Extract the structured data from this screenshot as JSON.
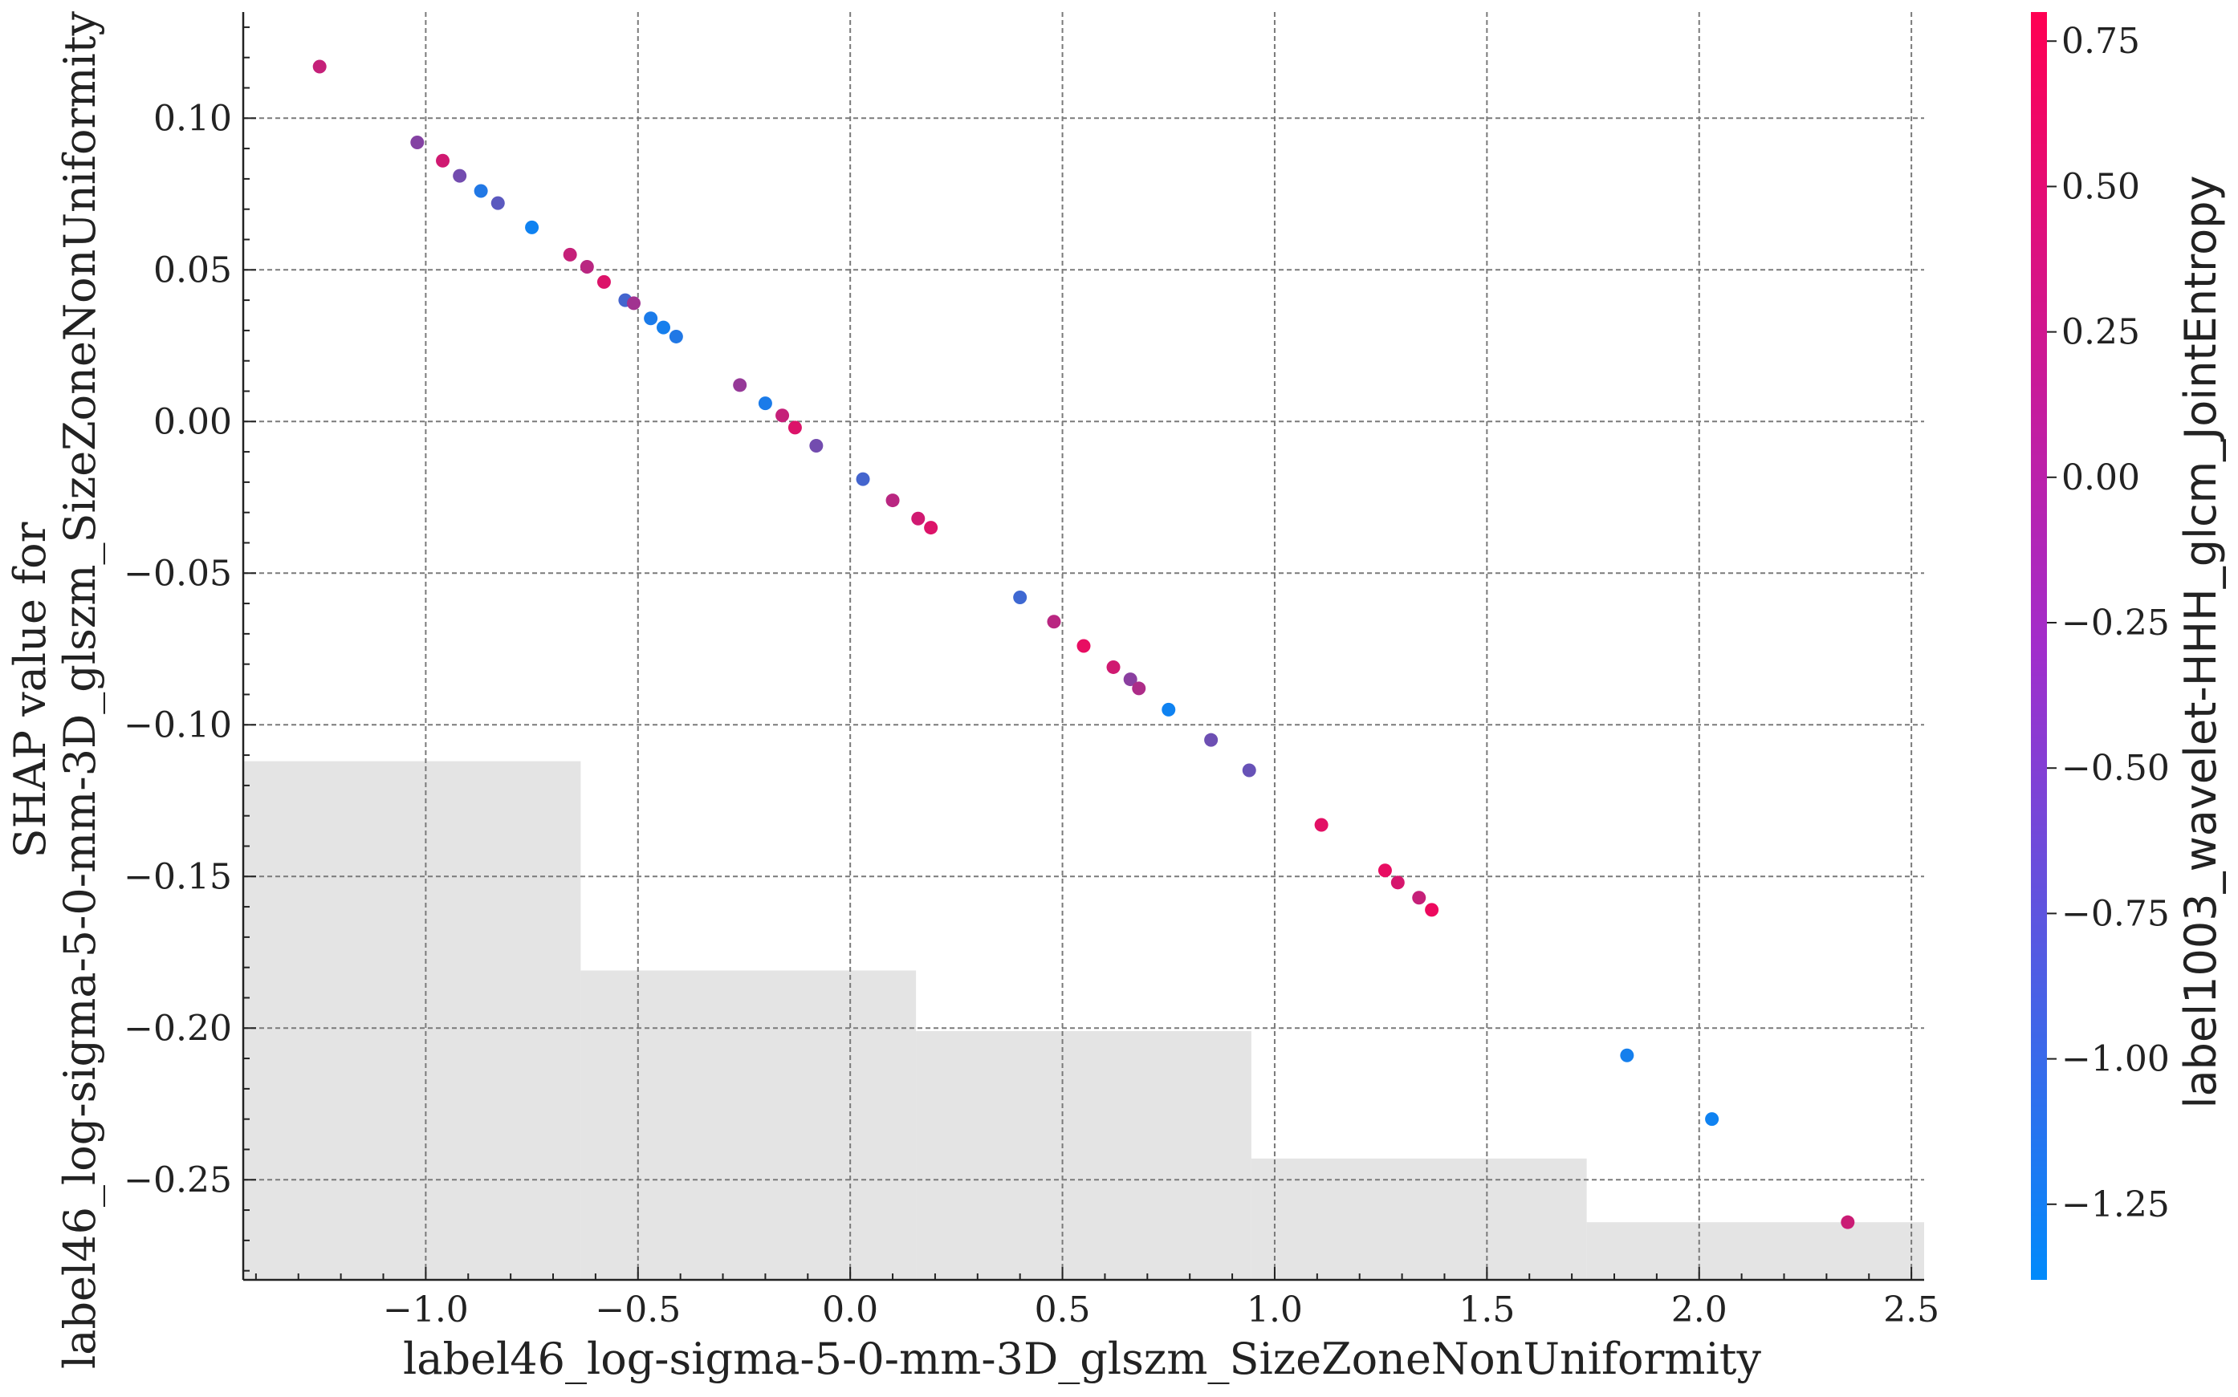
{
  "chart_data": {
    "type": "scatter",
    "xlabel": "label46_log-sigma-5-0-mm-3D_glszm_SizeZoneNonUniformity",
    "ylabel_line1": "SHAP value for",
    "ylabel_line2": "label46_log-sigma-5-0-mm-3D_glszm_SizeZoneNonUniformity",
    "colorbar_label": "label1003_wavelet-HHH_glcm_JointEntropy",
    "xlim": [
      -1.43,
      2.53
    ],
    "ylim": [
      -0.283,
      0.135
    ],
    "x_ticks": [
      -1.0,
      -0.5,
      0.0,
      0.5,
      1.0,
      1.5,
      2.0,
      2.5
    ],
    "x_tick_labels": [
      "−1.0",
      "−0.5",
      "0.0",
      "0.5",
      "1.0",
      "1.5",
      "2.0",
      "2.5"
    ],
    "y_ticks": [
      0.1,
      0.05,
      0.0,
      -0.05,
      -0.1,
      -0.15,
      -0.2,
      -0.25
    ],
    "y_tick_labels": [
      "0.10",
      "0.05",
      "0.00",
      "−0.05",
      "−0.10",
      "−0.15",
      "−0.20",
      "−0.25"
    ],
    "colorbar": {
      "range": [
        -1.38,
        0.8
      ],
      "ticks": [
        0.75,
        0.5,
        0.25,
        0.0,
        -0.25,
        -0.5,
        -0.75,
        -1.0,
        -1.25
      ],
      "tick_labels": [
        "0.75",
        "0.50",
        "0.25",
        "0.00",
        "−0.25",
        "−0.50",
        "−0.75",
        "−1.00",
        "−1.25"
      ],
      "color_low": "#008afb",
      "color_high": "#ff0052"
    },
    "histogram_background": {
      "color": "#e4e4e4",
      "bin_edges": [
        -1.43,
        -0.635,
        0.155,
        0.945,
        1.735,
        2.53
      ],
      "bar_tops": [
        -0.112,
        -0.181,
        -0.201,
        -0.243,
        -0.264
      ]
    },
    "grid": true,
    "points": [
      {
        "x": -1.25,
        "y": 0.117,
        "c": 0.3
      },
      {
        "x": -1.02,
        "y": 0.092,
        "c": -0.25
      },
      {
        "x": -0.96,
        "y": 0.086,
        "c": 0.4
      },
      {
        "x": -0.92,
        "y": 0.081,
        "c": -0.4
      },
      {
        "x": -0.87,
        "y": 0.076,
        "c": -1.1
      },
      {
        "x": -0.83,
        "y": 0.072,
        "c": -0.6
      },
      {
        "x": -0.75,
        "y": 0.064,
        "c": -1.25
      },
      {
        "x": -0.66,
        "y": 0.055,
        "c": 0.3
      },
      {
        "x": -0.62,
        "y": 0.051,
        "c": 0.2
      },
      {
        "x": -0.58,
        "y": 0.046,
        "c": 0.5
      },
      {
        "x": -0.53,
        "y": 0.04,
        "c": -0.8
      },
      {
        "x": -0.51,
        "y": 0.039,
        "c": 0.0
      },
      {
        "x": -0.47,
        "y": 0.034,
        "c": -1.15
      },
      {
        "x": -0.44,
        "y": 0.031,
        "c": -1.2
      },
      {
        "x": -0.41,
        "y": 0.028,
        "c": -1.1
      },
      {
        "x": -0.26,
        "y": 0.012,
        "c": -0.1
      },
      {
        "x": -0.2,
        "y": 0.006,
        "c": -1.15
      },
      {
        "x": -0.16,
        "y": 0.002,
        "c": 0.3
      },
      {
        "x": -0.13,
        "y": -0.002,
        "c": 0.5
      },
      {
        "x": -0.08,
        "y": -0.008,
        "c": -0.4
      },
      {
        "x": 0.03,
        "y": -0.019,
        "c": -0.8
      },
      {
        "x": 0.1,
        "y": -0.026,
        "c": 0.2
      },
      {
        "x": 0.16,
        "y": -0.032,
        "c": 0.4
      },
      {
        "x": 0.19,
        "y": -0.035,
        "c": 0.5
      },
      {
        "x": 0.4,
        "y": -0.058,
        "c": -0.85
      },
      {
        "x": 0.48,
        "y": -0.066,
        "c": 0.2
      },
      {
        "x": 0.55,
        "y": -0.074,
        "c": 0.6
      },
      {
        "x": 0.62,
        "y": -0.081,
        "c": 0.4
      },
      {
        "x": 0.66,
        "y": -0.085,
        "c": -0.2
      },
      {
        "x": 0.68,
        "y": -0.088,
        "c": 0.1
      },
      {
        "x": 0.75,
        "y": -0.095,
        "c": -1.25
      },
      {
        "x": 0.85,
        "y": -0.105,
        "c": -0.45
      },
      {
        "x": 0.94,
        "y": -0.115,
        "c": -0.5
      },
      {
        "x": 1.11,
        "y": -0.133,
        "c": 0.55
      },
      {
        "x": 1.26,
        "y": -0.148,
        "c": 0.6
      },
      {
        "x": 1.29,
        "y": -0.152,
        "c": 0.45
      },
      {
        "x": 1.34,
        "y": -0.157,
        "c": 0.3
      },
      {
        "x": 1.37,
        "y": -0.161,
        "c": 0.65
      },
      {
        "x": 1.83,
        "y": -0.209,
        "c": -1.2
      },
      {
        "x": 2.03,
        "y": -0.23,
        "c": -1.25
      },
      {
        "x": 2.35,
        "y": -0.264,
        "c": 0.35
      }
    ]
  }
}
